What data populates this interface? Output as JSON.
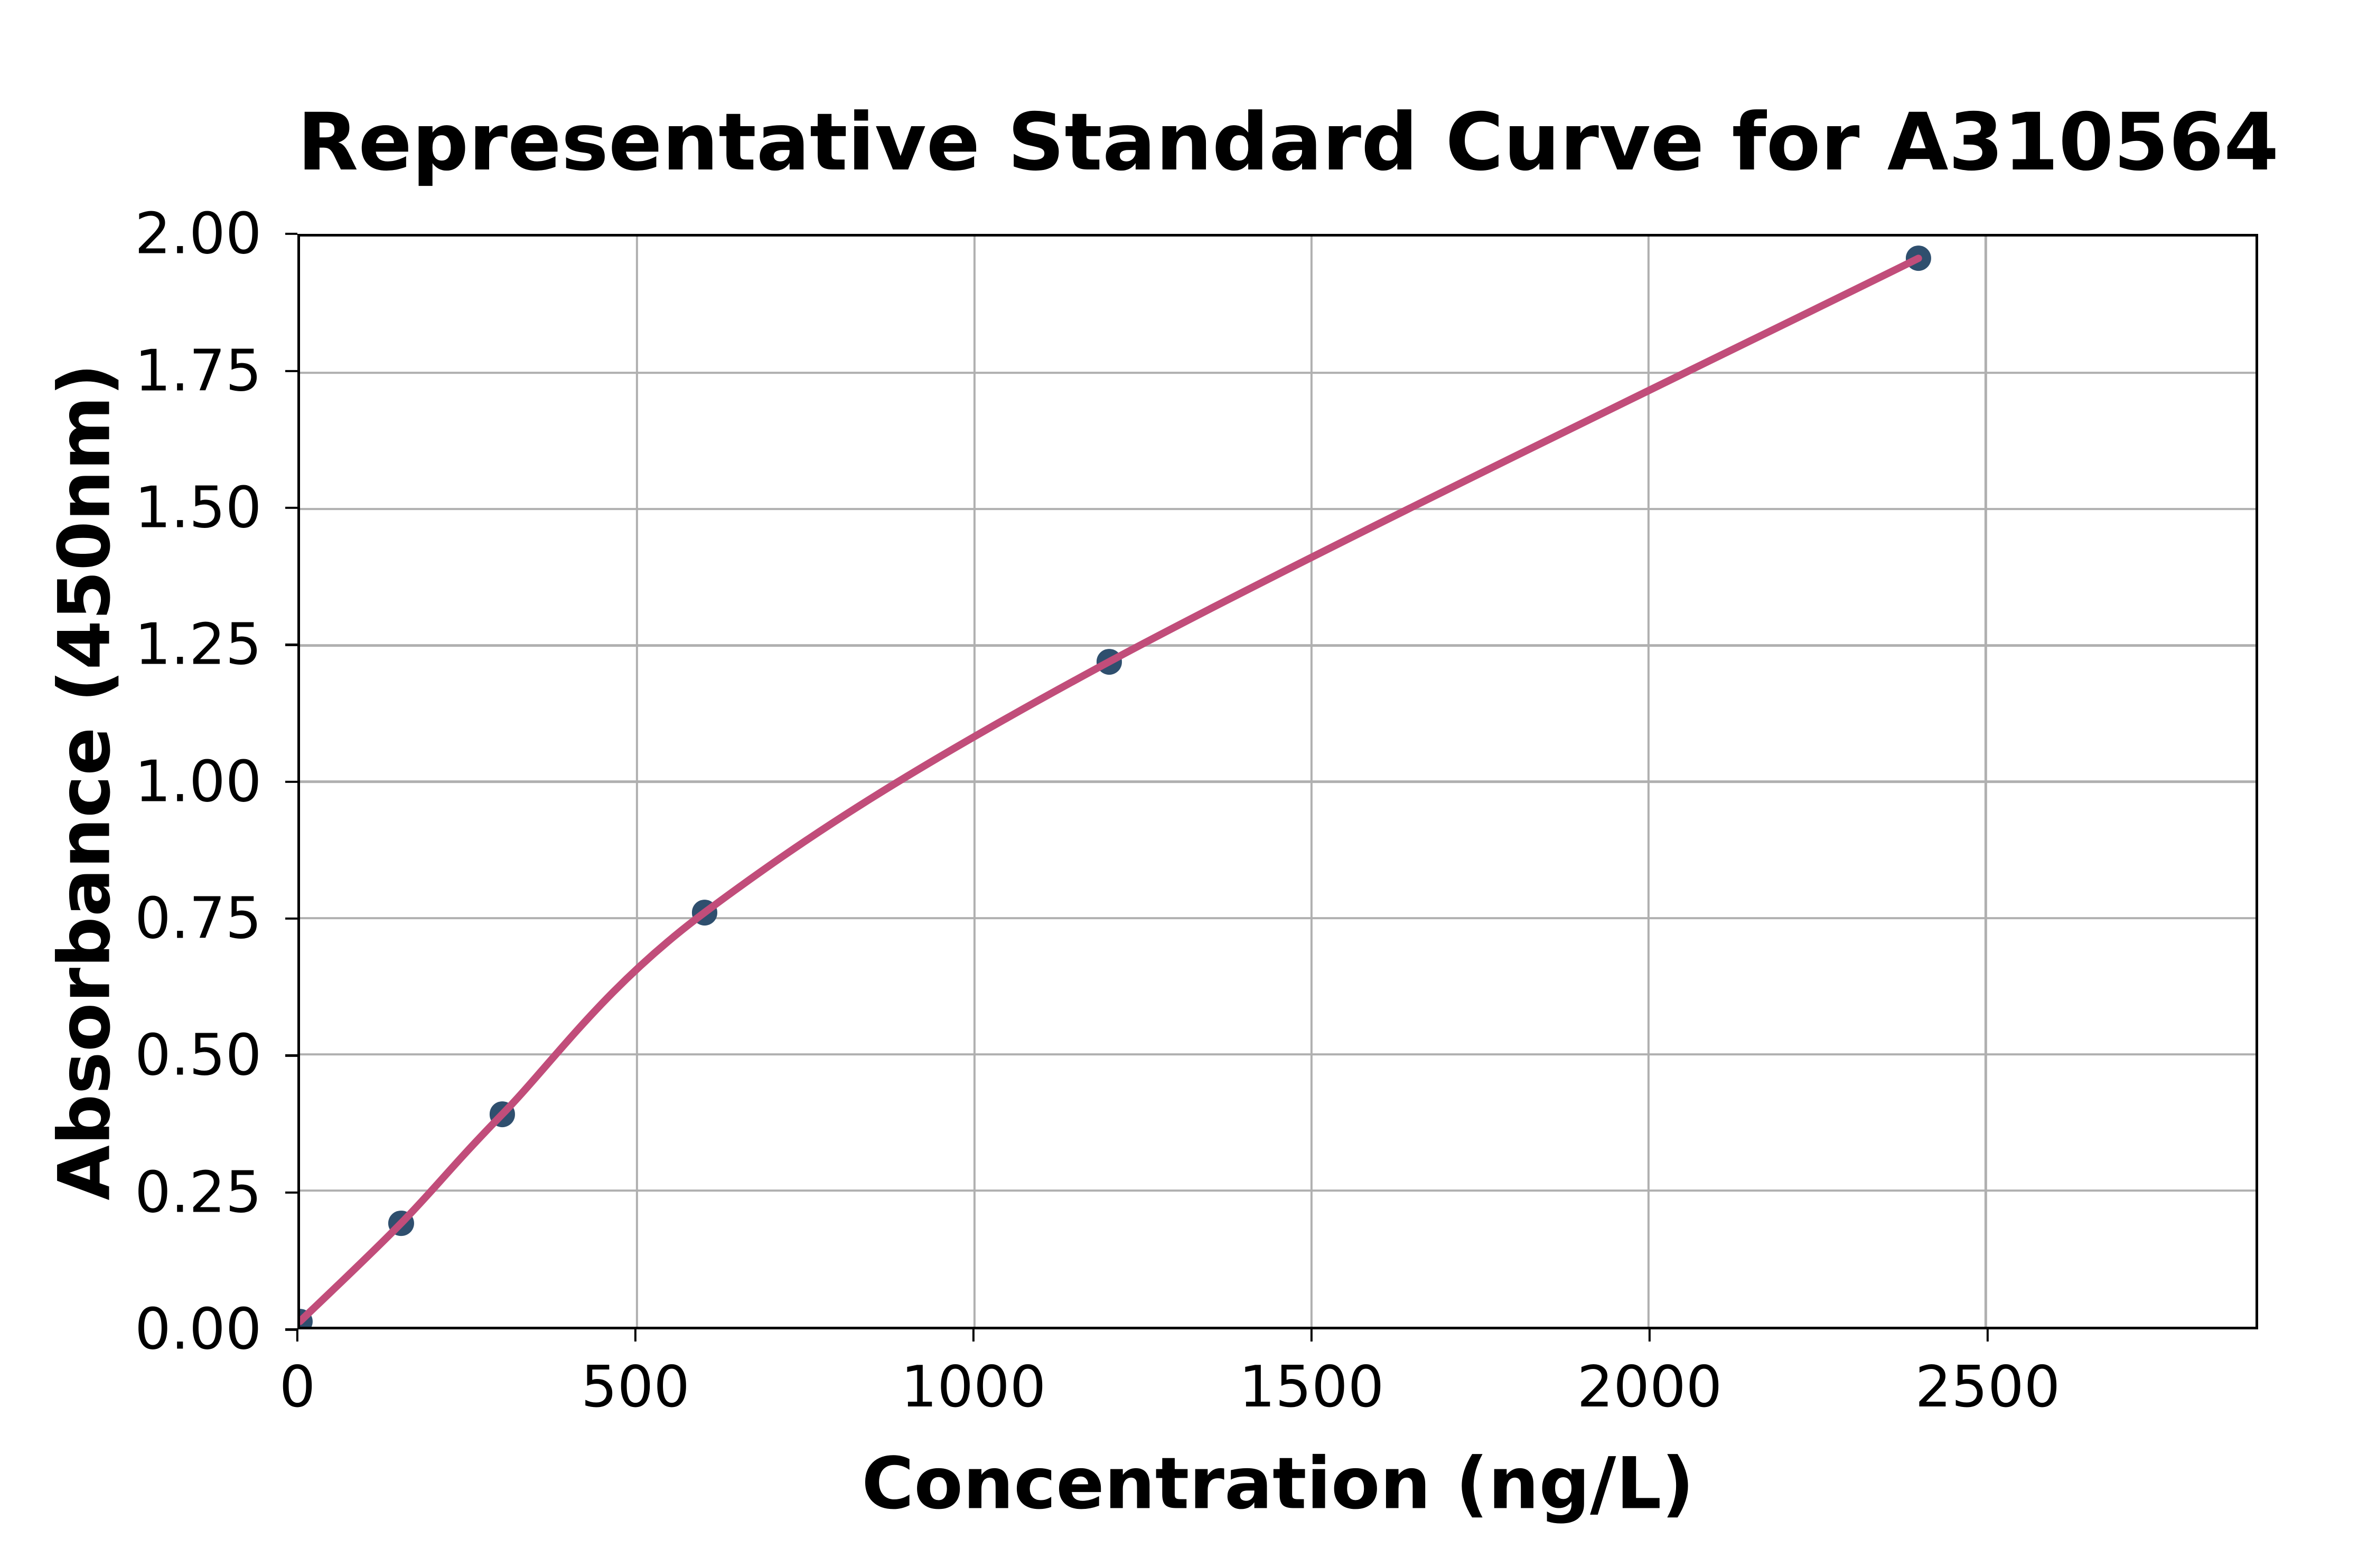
{
  "title": "Representative Standard Curve for A310564",
  "axes": {
    "x": {
      "label": "Concentration (ng/L)",
      "tick_values": [
        0,
        500,
        1000,
        1500,
        2000,
        2500
      ],
      "tick_labels": [
        "0",
        "500",
        "1000",
        "1500",
        "2000",
        "2500"
      ],
      "min": 0,
      "max": 2900
    },
    "y": {
      "label": "Absorbance (450nm)",
      "tick_values": [
        0,
        0.25,
        0.5,
        0.75,
        1.0,
        1.25,
        1.5,
        1.75,
        2.0
      ],
      "tick_labels": [
        "0.00",
        "0.25",
        "0.50",
        "0.75",
        "1.00",
        "1.25",
        "1.50",
        "1.75",
        "2.00"
      ],
      "min": 0,
      "max": 2
    }
  },
  "chart_data": {
    "type": "scatter",
    "title": "Representative Standard Curve for A310564",
    "xlabel": "Concentration (ng/L)",
    "ylabel": "Absorbance (450nm)",
    "x": [
      0,
      150,
      300,
      600,
      1200,
      2400
    ],
    "y": [
      0.01,
      0.19,
      0.39,
      0.76,
      1.22,
      1.96
    ],
    "fit_curve": "smooth saturating fit line through all points, drawn over markers",
    "xlim": [
      0,
      2900
    ],
    "ylim": [
      0,
      2
    ],
    "grid": true,
    "legend_position": "none"
  },
  "style": {
    "marker_color": "#2F4F6E",
    "curve_color": "#C14D7A",
    "grid_color": "#B0B0B0",
    "axis_color": "#000000",
    "background_color": "#FFFFFF"
  }
}
